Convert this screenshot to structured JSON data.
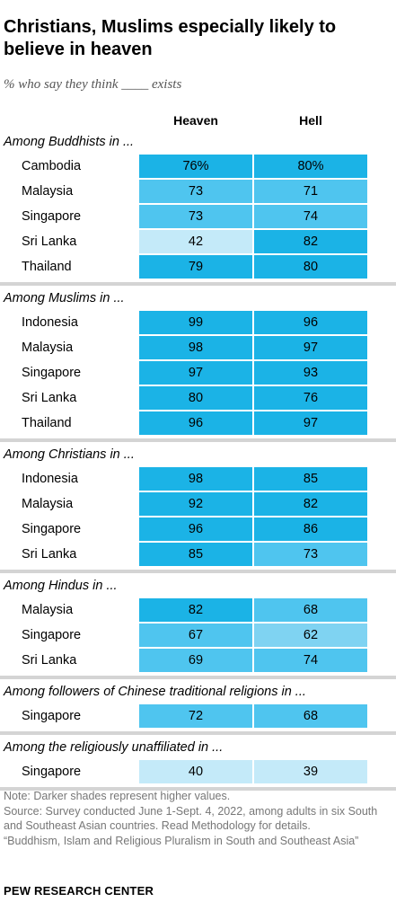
{
  "title": "Christians, Muslims especially likely to believe in heaven",
  "subtitle": "% who say they think ____ exists",
  "columns": {
    "heaven": "Heaven",
    "hell": "Hell"
  },
  "chart_data": {
    "type": "table",
    "title": "Christians, Muslims especially likely to believe in heaven",
    "subtitle": "% who say they think ____ exists",
    "columns": [
      "Heaven",
      "Hell"
    ],
    "colors": {
      "darkest": "#1bb3e6",
      "dark": "#4fc5ef",
      "medium": "#7fd3f2",
      "light": "#c4eaf9"
    },
    "groups": [
      {
        "label": "Among Buddhists in ...",
        "rows": [
          {
            "label": "Cambodia",
            "heaven": "76%",
            "hell": "80%",
            "heaven_value": 76,
            "hell_value": 80
          },
          {
            "label": "Malaysia",
            "heaven": "73",
            "hell": "71",
            "heaven_value": 73,
            "hell_value": 71
          },
          {
            "label": "Singapore",
            "heaven": "73",
            "hell": "74",
            "heaven_value": 73,
            "hell_value": 74
          },
          {
            "label": "Sri Lanka",
            "heaven": "42",
            "hell": "82",
            "heaven_value": 42,
            "hell_value": 82
          },
          {
            "label": "Thailand",
            "heaven": "79",
            "hell": "80",
            "heaven_value": 79,
            "hell_value": 80
          }
        ]
      },
      {
        "label": "Among Muslims in ...",
        "rows": [
          {
            "label": "Indonesia",
            "heaven": "99",
            "hell": "96",
            "heaven_value": 99,
            "hell_value": 96
          },
          {
            "label": "Malaysia",
            "heaven": "98",
            "hell": "97",
            "heaven_value": 98,
            "hell_value": 97
          },
          {
            "label": "Singapore",
            "heaven": "97",
            "hell": "93",
            "heaven_value": 97,
            "hell_value": 93
          },
          {
            "label": "Sri Lanka",
            "heaven": "80",
            "hell": "76",
            "heaven_value": 80,
            "hell_value": 76
          },
          {
            "label": "Thailand",
            "heaven": "96",
            "hell": "97",
            "heaven_value": 96,
            "hell_value": 97
          }
        ]
      },
      {
        "label": "Among Christians in ...",
        "rows": [
          {
            "label": "Indonesia",
            "heaven": "98",
            "hell": "85",
            "heaven_value": 98,
            "hell_value": 85
          },
          {
            "label": "Malaysia",
            "heaven": "92",
            "hell": "82",
            "heaven_value": 92,
            "hell_value": 82
          },
          {
            "label": "Singapore",
            "heaven": "96",
            "hell": "86",
            "heaven_value": 96,
            "hell_value": 86
          },
          {
            "label": "Sri Lanka",
            "heaven": "85",
            "hell": "73",
            "heaven_value": 85,
            "hell_value": 73
          }
        ]
      },
      {
        "label": "Among Hindus in ...",
        "rows": [
          {
            "label": "Malaysia",
            "heaven": "82",
            "hell": "68",
            "heaven_value": 82,
            "hell_value": 68
          },
          {
            "label": "Singapore",
            "heaven": "67",
            "hell": "62",
            "heaven_value": 67,
            "hell_value": 62
          },
          {
            "label": "Sri Lanka",
            "heaven": "69",
            "hell": "74",
            "heaven_value": 69,
            "hell_value": 74
          }
        ]
      },
      {
        "label": "Among followers of Chinese traditional religions in ...",
        "rows": [
          {
            "label": "Singapore",
            "heaven": "72",
            "hell": "68",
            "heaven_value": 72,
            "hell_value": 68
          }
        ]
      },
      {
        "label": "Among the religiously unaffiliated in ...",
        "rows": [
          {
            "label": "Singapore",
            "heaven": "40",
            "hell": "39",
            "heaven_value": 40,
            "hell_value": 39
          }
        ]
      }
    ]
  },
  "notes": [
    "Note: Darker shades represent higher values.",
    "Source: Survey conducted June 1-Sept. 4, 2022, among adults in six South and Southeast Asian countries. Read Methodology for details.",
    "“Buddhism, Islam and Religious Pluralism in South and Southeast Asia”"
  ],
  "brand": "PEW RESEARCH CENTER"
}
